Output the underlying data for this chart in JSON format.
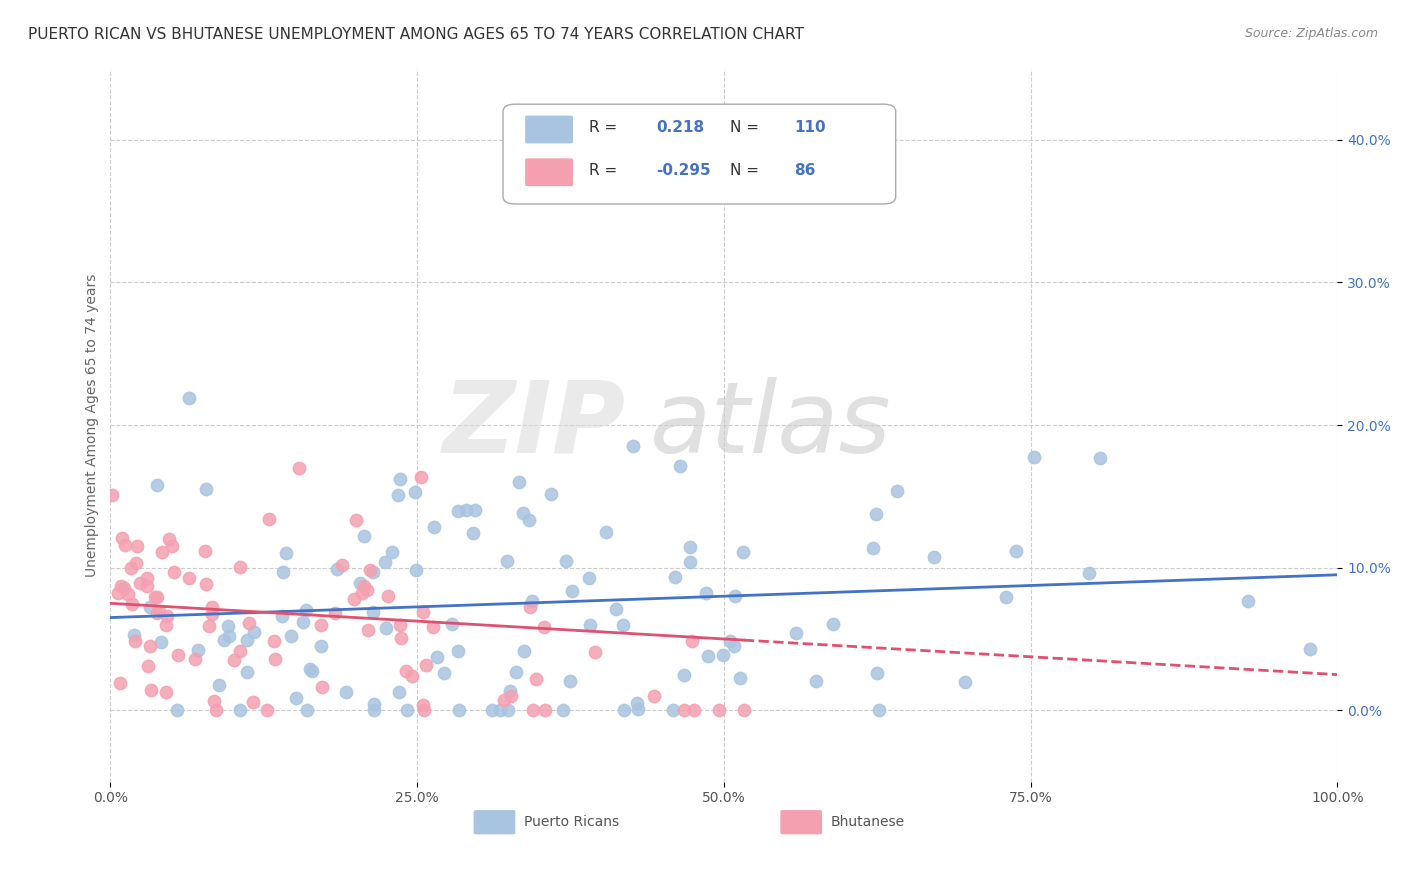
{
  "title": "PUERTO RICAN VS BHUTANESE UNEMPLOYMENT AMONG AGES 65 TO 74 YEARS CORRELATION CHART",
  "source": "Source: ZipAtlas.com",
  "ylabel": "Unemployment Among Ages 65 to 74 years",
  "xlim": [
    0.0,
    1.0
  ],
  "ylim": [
    -0.05,
    0.45
  ],
  "xticks": [
    0.0,
    0.25,
    0.5,
    0.75,
    1.0
  ],
  "xtick_labels": [
    "0.0%",
    "25.0%",
    "50.0%",
    "75.0%",
    "100.0%"
  ],
  "yticks": [
    0.0,
    0.1,
    0.2,
    0.3,
    0.4
  ],
  "ytick_labels": [
    "0.0%",
    "10.0%",
    "20.0%",
    "30.0%",
    "40.0%"
  ],
  "pr_R": 0.218,
  "pr_N": 110,
  "bh_R": -0.295,
  "bh_N": 86,
  "pr_color": "#a8c4e0",
  "bh_color": "#f4a0b0",
  "pr_line_color": "#4472c4",
  "bh_line_color": "#e05070",
  "background_color": "#ffffff",
  "grid_color": "#cccccc",
  "legend_label_pr": "Puerto Ricans",
  "legend_label_bh": "Bhutanese",
  "title_fontsize": 11,
  "axis_fontsize": 10,
  "tick_fontsize": 10
}
